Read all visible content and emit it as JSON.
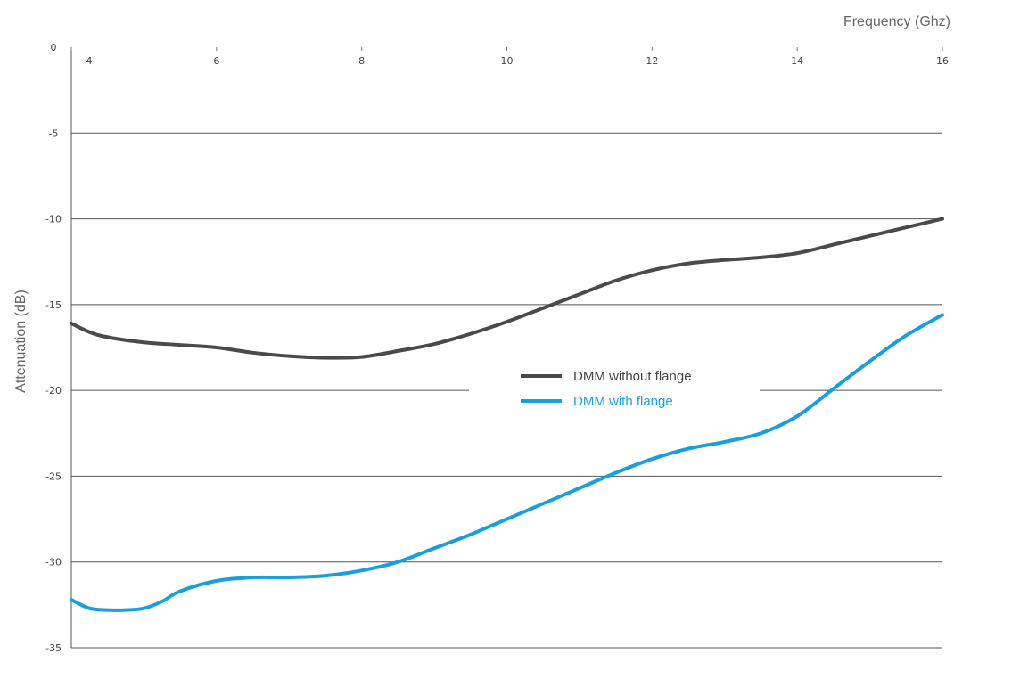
{
  "chart_data": {
    "type": "line",
    "xlabel": "Frequency (Ghz)",
    "ylabel": "Attenuation (dB)",
    "xlim": [
      4,
      16
    ],
    "ylim": [
      -35,
      0
    ],
    "x_ticks": [
      4,
      6,
      8,
      10,
      12,
      14,
      16
    ],
    "y_ticks": [
      0,
      -5,
      -10,
      -15,
      -20,
      -25,
      -30,
      -35
    ],
    "x_axis_position": "top",
    "grid": "horizontal",
    "legend_position": "center-right",
    "series": [
      {
        "name": "DMM without flange",
        "color": "#4a4a4a",
        "x": [
          4.0,
          4.25,
          4.5,
          5.0,
          5.5,
          6.0,
          6.5,
          7.0,
          7.5,
          8.0,
          8.5,
          9.0,
          9.5,
          10.0,
          10.5,
          11.0,
          11.5,
          12.0,
          12.5,
          13.0,
          13.5,
          14.0,
          14.5,
          15.0,
          15.5,
          16.0
        ],
        "y": [
          -16.1,
          -16.6,
          -16.9,
          -17.2,
          -17.35,
          -17.5,
          -17.8,
          -18.0,
          -18.1,
          -18.05,
          -17.7,
          -17.3,
          -16.7,
          -16.0,
          -15.2,
          -14.4,
          -13.6,
          -13.0,
          -12.6,
          -12.4,
          -12.25,
          -12.0,
          -11.5,
          -11.0,
          -10.5,
          -10.0
        ]
      },
      {
        "name": "DMM with flange",
        "color": "#1a9fde",
        "x": [
          4.0,
          4.25,
          4.5,
          4.75,
          5.0,
          5.25,
          5.5,
          6.0,
          6.5,
          7.0,
          7.5,
          8.0,
          8.5,
          9.0,
          9.5,
          10.0,
          10.5,
          11.0,
          11.5,
          12.0,
          12.5,
          13.0,
          13.5,
          14.0,
          14.5,
          15.0,
          15.5,
          16.0
        ],
        "y": [
          -32.2,
          -32.7,
          -32.8,
          -32.8,
          -32.7,
          -32.3,
          -31.7,
          -31.1,
          -30.9,
          -30.9,
          -30.8,
          -30.5,
          -30.0,
          -29.2,
          -28.4,
          -27.5,
          -26.6,
          -25.7,
          -24.8,
          -24.0,
          -23.4,
          -23.0,
          -22.5,
          -21.5,
          -19.9,
          -18.3,
          -16.8,
          -15.6
        ]
      }
    ]
  }
}
